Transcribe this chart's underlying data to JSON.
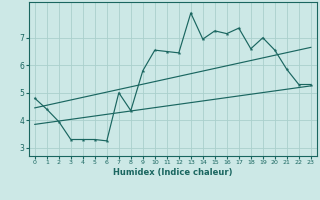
{
  "xlabel": "Humidex (Indice chaleur)",
  "background_color": "#cce8e6",
  "grid_color": "#aad0cc",
  "line_color": "#1a6660",
  "xlim": [
    -0.5,
    23.5
  ],
  "ylim": [
    2.7,
    8.3
  ],
  "xticks": [
    0,
    1,
    2,
    3,
    4,
    5,
    6,
    7,
    8,
    9,
    10,
    11,
    12,
    13,
    14,
    15,
    16,
    17,
    18,
    19,
    20,
    21,
    22,
    23
  ],
  "yticks": [
    3,
    4,
    5,
    6,
    7
  ],
  "data_x": [
    0,
    1,
    2,
    3,
    4,
    5,
    6,
    7,
    8,
    9,
    10,
    11,
    12,
    13,
    14,
    15,
    16,
    17,
    18,
    19,
    20,
    21,
    22,
    23
  ],
  "data_y": [
    4.8,
    4.4,
    3.95,
    3.3,
    3.3,
    3.3,
    3.25,
    5.0,
    4.35,
    5.8,
    6.55,
    6.5,
    6.45,
    7.9,
    6.95,
    7.25,
    7.15,
    7.35,
    6.6,
    7.0,
    6.55,
    5.85,
    5.3,
    5.3
  ],
  "line1_x": [
    0,
    23
  ],
  "line1_y": [
    3.85,
    5.25
  ],
  "line2_x": [
    0,
    23
  ],
  "line2_y": [
    4.45,
    6.65
  ]
}
